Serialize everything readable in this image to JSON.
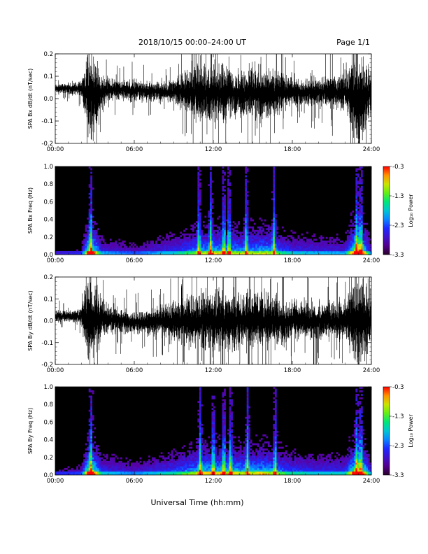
{
  "header": {
    "title": "2018/10/15  00:00–24:00 UT",
    "page": "Page 1/1"
  },
  "xlabel": "Universal Time (hh:mm)",
  "colorbar_label": "Log₁₀ Power",
  "colors": {
    "background": "#ffffff",
    "waveform": "#000000",
    "spectrogram_background": "#000000"
  },
  "chart_data": [
    {
      "type": "line",
      "name": "panel-bx-waveform",
      "ylabel": "SPA Bx dB/dt (nT/sec)",
      "xlim": [
        0,
        24
      ],
      "ylim": [
        -0.2,
        0.2
      ],
      "xticks": [
        "00:00",
        "06:00",
        "12:00",
        "18:00",
        "24:00"
      ],
      "yticks": [
        "-0.2",
        "-0.1",
        "0.0",
        "0.1",
        "0.2"
      ],
      "ytick_values": [
        -0.2,
        -0.1,
        0.0,
        0.1,
        0.2
      ],
      "envelope": {
        "x_hours": [
          0,
          1,
          2,
          2.5,
          2.8,
          3.5,
          4,
          5,
          6,
          7,
          8,
          9,
          10,
          11,
          12,
          13,
          14,
          15,
          16,
          17,
          18,
          19,
          20,
          21,
          22,
          22.8,
          23.3,
          24
        ],
        "center": [
          0.045,
          0.045,
          0.045,
          0.02,
          0.0,
          0.03,
          0.04,
          0.04,
          0.035,
          0.035,
          0.03,
          0.03,
          0.03,
          0.025,
          0.03,
          0.025,
          0.02,
          0.02,
          0.02,
          0.025,
          0.03,
          0.03,
          0.03,
          0.03,
          0.03,
          0.0,
          0.0,
          0.03
        ],
        "halfwidth": [
          0.025,
          0.03,
          0.04,
          0.25,
          0.25,
          0.1,
          0.06,
          0.05,
          0.06,
          0.05,
          0.05,
          0.06,
          0.12,
          0.15,
          0.16,
          0.14,
          0.12,
          0.14,
          0.14,
          0.11,
          0.07,
          0.07,
          0.07,
          0.09,
          0.1,
          0.25,
          0.25,
          0.1
        ]
      }
    },
    {
      "type": "heatmap",
      "name": "panel-bx-spectrogram",
      "ylabel": "SPA Bx Freq (Hz)",
      "xlim": [
        0,
        24
      ],
      "ylim": [
        0.0,
        1.0
      ],
      "xticks": [
        "00:00",
        "06:00",
        "12:00",
        "18:00",
        "24:00"
      ],
      "yticks": [
        "0.0",
        "0.2",
        "0.4",
        "0.6",
        "0.8",
        "1.0"
      ],
      "ytick_values": [
        0.0,
        0.2,
        0.4,
        0.6,
        0.8,
        1.0
      ],
      "colorbar": {
        "min": -3.3,
        "max": -0.3,
        "ticks": [
          "-0.3",
          "-1.3",
          "-2.3",
          "-3.3"
        ],
        "tick_values": [
          -0.3,
          -1.3,
          -2.3,
          -3.3
        ]
      },
      "activity": {
        "x_hours": [
          0,
          2,
          2.5,
          2.8,
          3.5,
          6,
          8,
          9,
          10,
          11,
          12,
          13,
          14,
          15,
          16,
          17,
          18,
          20,
          22,
          22.8,
          23.3,
          24
        ],
        "level": [
          0.1,
          0.15,
          0.8,
          0.85,
          0.3,
          0.2,
          0.3,
          0.35,
          0.45,
          0.55,
          0.6,
          0.6,
          0.55,
          0.55,
          0.6,
          0.45,
          0.35,
          0.3,
          0.3,
          0.9,
          0.85,
          0.2
        ]
      },
      "bursts_hours": [
        2.7,
        10.9,
        11.8,
        12.8,
        13.2,
        14.5,
        16.6,
        22.9,
        23.2
      ]
    },
    {
      "type": "line",
      "name": "panel-by-waveform",
      "ylabel": "SPA By dB/dt (nT/sec)",
      "xlim": [
        0,
        24
      ],
      "ylim": [
        -0.2,
        0.2
      ],
      "xticks": [
        "00:00",
        "06:00",
        "12:00",
        "18:00",
        "24:00"
      ],
      "yticks": [
        "-0.2",
        "-0.1",
        "0.0",
        "0.1",
        "0.2"
      ],
      "ytick_values": [
        -0.2,
        -0.1,
        0.0,
        0.1,
        0.2
      ],
      "envelope": {
        "x_hours": [
          0,
          1,
          2,
          2.5,
          2.8,
          3.5,
          4,
          5,
          6,
          7,
          8,
          9,
          10,
          11,
          12,
          13,
          14,
          15,
          16,
          17,
          18,
          19,
          20,
          21,
          22,
          22.8,
          23.3,
          24
        ],
        "center": [
          0.02,
          0.02,
          0.02,
          0.0,
          0.0,
          0.01,
          0.0,
          0.0,
          -0.01,
          -0.01,
          0.0,
          0.0,
          0.0,
          0.0,
          0.0,
          0.0,
          0.0,
          0.0,
          0.0,
          0.0,
          0.0,
          0.0,
          0.0,
          0.0,
          0.0,
          0.0,
          0.0,
          0.0
        ],
        "halfwidth": [
          0.03,
          0.035,
          0.05,
          0.25,
          0.25,
          0.12,
          0.08,
          0.07,
          0.06,
          0.07,
          0.08,
          0.1,
          0.14,
          0.16,
          0.18,
          0.16,
          0.15,
          0.16,
          0.16,
          0.14,
          0.11,
          0.1,
          0.1,
          0.1,
          0.11,
          0.25,
          0.25,
          0.12
        ]
      }
    },
    {
      "type": "heatmap",
      "name": "panel-by-spectrogram",
      "ylabel": "SPA By Freq (Hz)",
      "xlim": [
        0,
        24
      ],
      "ylim": [
        0.0,
        1.0
      ],
      "xticks": [
        "00:00",
        "06:00",
        "12:00",
        "18:00",
        "24:00"
      ],
      "yticks": [
        "0.0",
        "0.2",
        "0.4",
        "0.6",
        "0.8",
        "1.0"
      ],
      "ytick_values": [
        0.0,
        0.2,
        0.4,
        0.6,
        0.8,
        1.0
      ],
      "colorbar": {
        "min": -3.3,
        "max": -0.3,
        "ticks": [
          "-0.3",
          "-1.3",
          "-2.3",
          "-3.3"
        ],
        "tick_values": [
          -0.3,
          -1.3,
          -2.3,
          -3.3
        ]
      },
      "activity": {
        "x_hours": [
          0,
          2,
          2.5,
          2.8,
          3.5,
          6,
          8,
          9,
          10,
          11,
          12,
          13,
          14,
          15,
          16,
          17,
          18,
          20,
          22,
          22.8,
          23.3,
          24
        ],
        "level": [
          0.15,
          0.2,
          0.85,
          0.9,
          0.35,
          0.25,
          0.35,
          0.4,
          0.5,
          0.6,
          0.65,
          0.65,
          0.6,
          0.6,
          0.65,
          0.5,
          0.4,
          0.35,
          0.35,
          0.9,
          0.85,
          0.25
        ]
      },
      "bursts_hours": [
        2.7,
        11.0,
        12.0,
        12.8,
        13.3,
        14.6,
        16.7,
        22.9,
        23.2
      ]
    }
  ]
}
